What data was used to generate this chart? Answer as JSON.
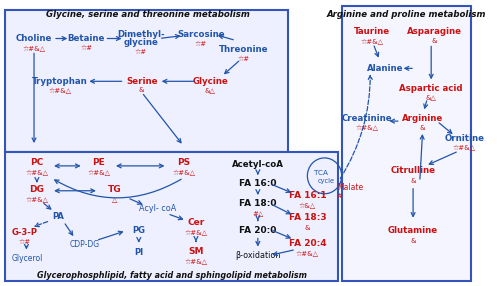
{
  "fig_width": 5.0,
  "fig_height": 2.86,
  "dpi": 100,
  "bg_color": "#ffffff",
  "blue": "#2255AA",
  "red": "#CC1111",
  "black": "#111111",
  "box_edge": "#3355BB",
  "box_face": "#EEF0FF",
  "title_tl": "Glycine, serine and threonine metabolism",
  "title_tr": "Arginine and proline metabolism",
  "title_bot": "Glycerophosphlipid, fatty acid and sphingolipid metabolism"
}
